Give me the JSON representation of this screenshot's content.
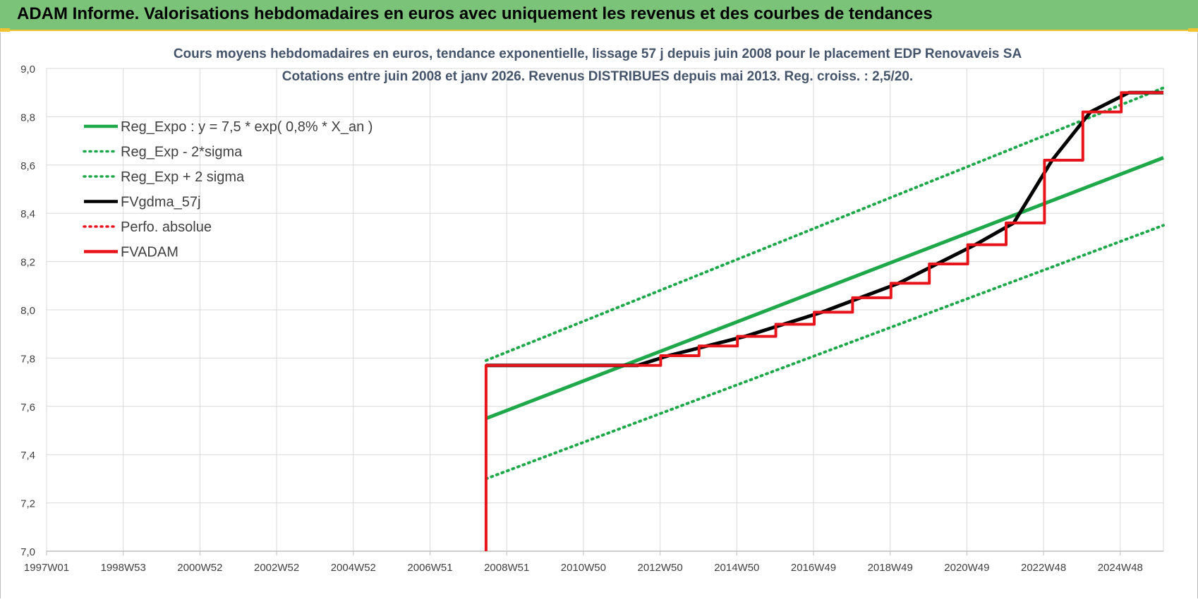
{
  "banner": {
    "title": "ADAM Informe. Valorisations hebdomadaires en euros avec uniquement les revenus et des courbes de tendances"
  },
  "colors": {
    "banner_bg": "#7cc37a",
    "accent_yellow": "#f1c232",
    "green": "#1fa84a",
    "black": "#000000",
    "red": "#e8141c",
    "grid": "#d9d9d9"
  },
  "chart_data": {
    "type": "line",
    "title": "Cours moyens hebdomadaires en euros, tendance exponentielle, lissage 57 j depuis juin 2008 pour le placement EDP Renovaveis SA",
    "subtitle": "Cotations entre juin 2008 et janv 2026.  Revenus DISTRIBUES depuis mai 2013. Reg.  croiss. : 2,5/20.",
    "xlabel": "",
    "ylabel": "",
    "x_tick_labels": [
      "1997W01",
      "1998W53",
      "2000W52",
      "2002W52",
      "2004W52",
      "2006W51",
      "2008W51",
      "2010W50",
      "2012W50",
      "2014W50",
      "2016W49",
      "2018W49",
      "2020W49",
      "2022W48",
      "2024W48"
    ],
    "y_tick_labels": [
      "7,0",
      "7,2",
      "7,4",
      "7,6",
      "7,8",
      "8,0",
      "8,2",
      "8,4",
      "8,6",
      "8,8",
      "9,0"
    ],
    "ylim": [
      7.0,
      9.0
    ],
    "xlim": [
      1997.0,
      2026.1
    ],
    "grid": true,
    "legend_position": "top-left",
    "series": [
      {
        "name": "Reg_Expo : y = 7,5 * exp( 0,8% *  X_an )",
        "style": "solid",
        "color": "#1fa84a",
        "points": [
          [
            2008.45,
            7.55
          ],
          [
            2026.1,
            8.63
          ]
        ]
      },
      {
        "name": "Reg_Exp - 2*sigma",
        "style": "dotted",
        "color": "#1fa84a",
        "points": [
          [
            2008.45,
            7.3
          ],
          [
            2026.1,
            8.35
          ]
        ]
      },
      {
        "name": "Reg_Exp + 2 sigma",
        "style": "dotted",
        "color": "#1fa84a",
        "points": [
          [
            2008.45,
            7.79
          ],
          [
            2026.1,
            8.92
          ]
        ]
      },
      {
        "name": "FVgdma_57j",
        "style": "solid",
        "color": "#000000",
        "points": [
          [
            2008.45,
            7.77
          ],
          [
            2012.4,
            7.77
          ],
          [
            2013.2,
            7.81
          ],
          [
            2014.2,
            7.85
          ],
          [
            2015.2,
            7.89
          ],
          [
            2016.2,
            7.94
          ],
          [
            2017.2,
            7.99
          ],
          [
            2018.2,
            8.05
          ],
          [
            2019.2,
            8.11
          ],
          [
            2020.2,
            8.19
          ],
          [
            2021.2,
            8.27
          ],
          [
            2022.2,
            8.36
          ],
          [
            2023.2,
            8.62
          ],
          [
            2024.2,
            8.82
          ],
          [
            2025.2,
            8.9
          ],
          [
            2026.1,
            8.9
          ]
        ]
      },
      {
        "name": "Perfo. absolue",
        "style": "dotted",
        "color": "#e8141c",
        "points": []
      },
      {
        "name": "FVADAM",
        "style": "solid",
        "color": "#e8141c",
        "points": [
          [
            2008.45,
            7.0
          ],
          [
            2008.45,
            7.77
          ],
          [
            2013.0,
            7.77
          ],
          [
            2013.0,
            7.81
          ],
          [
            2014.0,
            7.81
          ],
          [
            2014.0,
            7.85
          ],
          [
            2015.0,
            7.85
          ],
          [
            2015.0,
            7.89
          ],
          [
            2016.0,
            7.89
          ],
          [
            2016.0,
            7.94
          ],
          [
            2017.0,
            7.94
          ],
          [
            2017.0,
            7.99
          ],
          [
            2018.0,
            7.99
          ],
          [
            2018.0,
            8.05
          ],
          [
            2019.0,
            8.05
          ],
          [
            2019.0,
            8.11
          ],
          [
            2020.0,
            8.11
          ],
          [
            2020.0,
            8.19
          ],
          [
            2021.0,
            8.19
          ],
          [
            2021.0,
            8.27
          ],
          [
            2022.0,
            8.27
          ],
          [
            2022.0,
            8.36
          ],
          [
            2023.0,
            8.36
          ],
          [
            2023.0,
            8.62
          ],
          [
            2024.0,
            8.62
          ],
          [
            2024.0,
            8.82
          ],
          [
            2025.0,
            8.82
          ],
          [
            2025.0,
            8.9
          ],
          [
            2026.1,
            8.9
          ]
        ]
      }
    ]
  }
}
